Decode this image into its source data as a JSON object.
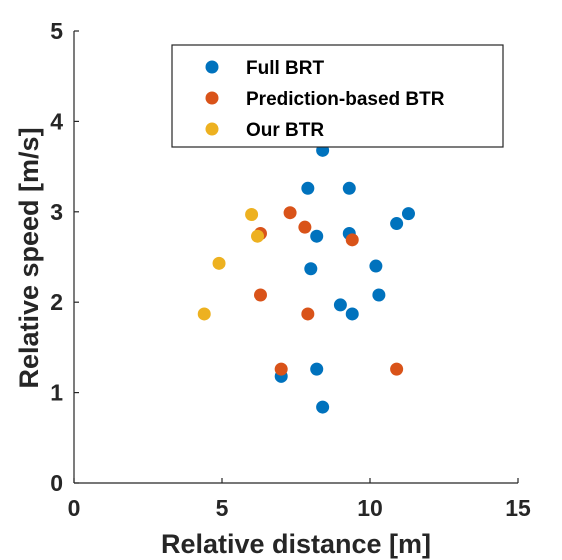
{
  "chart_data": {
    "type": "scatter",
    "title": "",
    "xlabel": "Relative distance [m]",
    "ylabel": "Relative speed [m/s]",
    "xlim": [
      0,
      15
    ],
    "ylim": [
      0,
      5
    ],
    "xticks": [
      "0",
      "5",
      "10",
      "15"
    ],
    "yticks": [
      "0",
      "1",
      "2",
      "3",
      "4",
      "5"
    ],
    "grid": false,
    "legend_position": "top-right",
    "series": [
      {
        "name": "Full BRT",
        "color": "#0072BD",
        "points": [
          {
            "x": 8.4,
            "y": 3.68
          },
          {
            "x": 7.9,
            "y": 3.26
          },
          {
            "x": 9.3,
            "y": 3.26
          },
          {
            "x": 11.3,
            "y": 2.98
          },
          {
            "x": 10.9,
            "y": 2.87
          },
          {
            "x": 8.2,
            "y": 2.73
          },
          {
            "x": 9.3,
            "y": 2.76
          },
          {
            "x": 8.0,
            "y": 2.37
          },
          {
            "x": 10.2,
            "y": 2.4
          },
          {
            "x": 10.3,
            "y": 2.08
          },
          {
            "x": 9.0,
            "y": 1.97
          },
          {
            "x": 9.4,
            "y": 1.87
          },
          {
            "x": 7.0,
            "y": 1.18
          },
          {
            "x": 8.2,
            "y": 1.26
          },
          {
            "x": 8.4,
            "y": 0.84
          }
        ]
      },
      {
        "name": "Prediction-based BTR",
        "color": "#D95319",
        "points": [
          {
            "x": 7.3,
            "y": 2.99
          },
          {
            "x": 7.8,
            "y": 2.83
          },
          {
            "x": 6.3,
            "y": 2.76
          },
          {
            "x": 9.4,
            "y": 2.69
          },
          {
            "x": 6.3,
            "y": 2.08
          },
          {
            "x": 7.9,
            "y": 1.87
          },
          {
            "x": 7.0,
            "y": 1.26
          },
          {
            "x": 10.9,
            "y": 1.26
          }
        ]
      },
      {
        "name": "Our BTR",
        "color": "#EDB120",
        "points": [
          {
            "x": 6.0,
            "y": 2.97
          },
          {
            "x": 6.2,
            "y": 2.73
          },
          {
            "x": 4.9,
            "y": 2.43
          },
          {
            "x": 4.4,
            "y": 1.87
          }
        ]
      }
    ]
  }
}
